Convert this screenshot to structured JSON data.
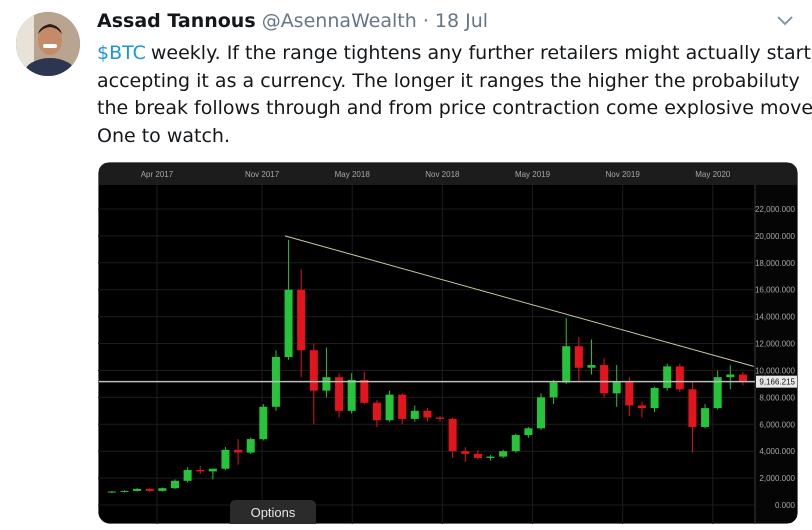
{
  "tweet": {
    "author": "Assad Tannous",
    "handle": "@AsennaWealth",
    "separator": "·",
    "date": "18 Jul",
    "cashtag": "$BTC",
    "text_lines": [
      "weekly. If the range tightens any further retailers might actually start",
      "accepting it as a currency. The longer it ranges the higher the probabiluty",
      "the break follows through and from price contraction come explosive moves.",
      "One to watch."
    ]
  },
  "chart_data": {
    "type": "candlestick",
    "x": [
      2017.0,
      2017.07,
      2017.14,
      2017.21,
      2017.28,
      2017.35,
      2017.42,
      2017.49,
      2017.56,
      2017.63,
      2017.7,
      2017.77,
      2017.84,
      2017.91,
      2017.98,
      2018.05,
      2018.12,
      2018.19,
      2018.26,
      2018.33,
      2018.4,
      2018.47,
      2018.54,
      2018.61,
      2018.68,
      2018.75,
      2018.82,
      2018.89,
      2018.96,
      2019.03,
      2019.1,
      2019.17,
      2019.24,
      2019.31,
      2019.38,
      2019.45,
      2019.52,
      2019.59,
      2019.66,
      2019.73,
      2019.8,
      2019.87,
      2019.94,
      2020.01,
      2020.08,
      2020.15,
      2020.22,
      2020.29,
      2020.36,
      2020.43,
      2020.5
    ],
    "open": [
      950,
      1000,
      1050,
      1200,
      1050,
      1250,
      1800,
      2600,
      2500,
      2700,
      4100,
      3900,
      4900,
      7300,
      11000,
      16000,
      11500,
      8500,
      9500,
      7000,
      9300,
      7600,
      6300,
      8200,
      6400,
      7000,
      6500,
      6400,
      4000,
      3800,
      3500,
      3600,
      4000,
      5200,
      5700,
      8000,
      9100,
      11800,
      10200,
      10400,
      8300,
      9200,
      7400,
      7200,
      8700,
      10300,
      8600,
      5800,
      7200,
      9500,
      9700
    ],
    "high": [
      1050,
      1100,
      1250,
      1250,
      1300,
      1900,
      2800,
      2900,
      2700,
      4300,
      4900,
      5000,
      7500,
      11500,
      19700,
      17500,
      12000,
      11700,
      9800,
      9800,
      9900,
      7800,
      8500,
      8300,
      7400,
      7200,
      6600,
      6500,
      4300,
      4100,
      3700,
      4100,
      5300,
      5800,
      8300,
      9300,
      13900,
      12500,
      12300,
      10900,
      10400,
      9500,
      7700,
      8800,
      10500,
      10500,
      9200,
      7500,
      10000,
      10400,
      9900
    ],
    "low": [
      900,
      950,
      1000,
      950,
      1000,
      1200,
      1700,
      2300,
      1900,
      2600,
      3000,
      3800,
      4800,
      7000,
      10800,
      9500,
      6000,
      8000,
      6500,
      6800,
      7500,
      5800,
      6200,
      6000,
      6200,
      6200,
      6200,
      3500,
      3200,
      3400,
      3300,
      3500,
      3900,
      5000,
      5600,
      7500,
      9000,
      9200,
      9700,
      8000,
      7300,
      6600,
      6500,
      6900,
      8500,
      8400,
      3900,
      5700,
      7100,
      8600,
      8900
    ],
    "close": [
      1000,
      1050,
      1200,
      1050,
      1250,
      1800,
      2600,
      2500,
      2700,
      4100,
      3900,
      4900,
      7300,
      11000,
      16000,
      11500,
      8500,
      9500,
      7000,
      9300,
      7600,
      6300,
      8200,
      6400,
      7000,
      6500,
      6400,
      4000,
      3800,
      3500,
      3600,
      4000,
      5200,
      5700,
      8000,
      9100,
      11800,
      10200,
      10400,
      8300,
      9200,
      7400,
      7200,
      8700,
      10300,
      8600,
      5800,
      7200,
      9500,
      9700,
      9200
    ],
    "up_color": "#26c43a",
    "down_color": "#e3141d",
    "xlim": [
      2016.923,
      2020.567
    ],
    "xticks": [
      {
        "value": 2017.25,
        "label": "Apr 2017"
      },
      {
        "value": 2017.833,
        "label": "Nov 2017"
      },
      {
        "value": 2018.333,
        "label": "May 2018"
      },
      {
        "value": 2018.833,
        "label": "Nov 2018"
      },
      {
        "value": 2019.333,
        "label": "May 2019"
      },
      {
        "value": 2019.833,
        "label": "Nov 2019"
      },
      {
        "value": 2020.333,
        "label": "May 2020"
      }
    ],
    "ylim": [
      -1410,
      23780
    ],
    "yticks": [
      {
        "value": 0,
        "label": "0.000"
      },
      {
        "value": 2000,
        "label": "2,000.000"
      },
      {
        "value": 4000,
        "label": "4,000.000"
      },
      {
        "value": 6000,
        "label": "6,000.000"
      },
      {
        "value": 8000,
        "label": "8,000.000"
      },
      {
        "value": 10000,
        "label": "10,000.000"
      },
      {
        "value": 12000,
        "label": "12,000.000"
      },
      {
        "value": 14000,
        "label": "14,000.000"
      },
      {
        "value": 16000,
        "label": "16,000.000"
      },
      {
        "value": 18000,
        "label": "18,000.000"
      },
      {
        "value": 20000,
        "label": "20,000.000"
      },
      {
        "value": 22000,
        "label": "22,000.000"
      }
    ],
    "grid": true,
    "trendline": {
      "x": [
        2017.96,
        2020.56
      ],
      "y": [
        20000,
        10300
      ],
      "color": "#c9c9a0"
    },
    "price_line": {
      "value": 9166.215,
      "label": "9,166.215"
    }
  },
  "options_button": "Options"
}
